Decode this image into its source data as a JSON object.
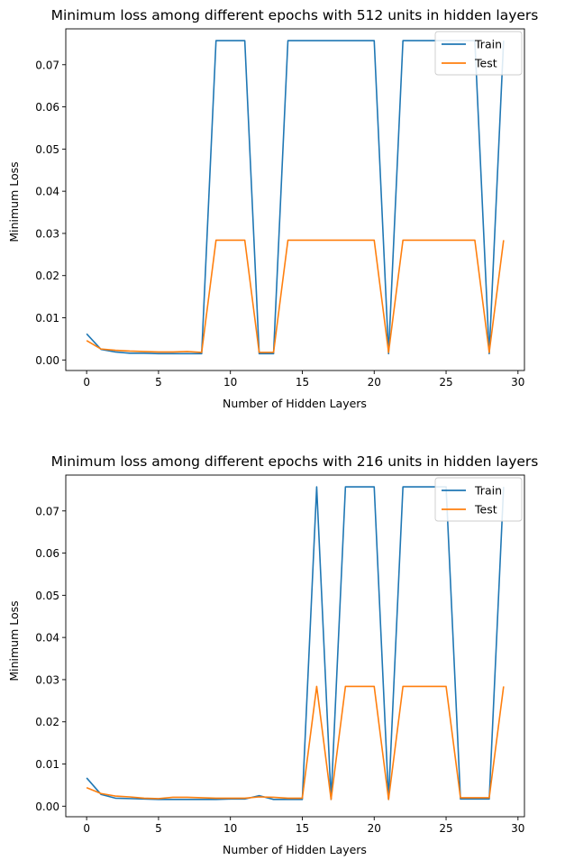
{
  "chart_data": [
    {
      "type": "line",
      "title": "Minimum loss among different epochs with 512 units in hidden layers",
      "xlabel": "Number of Hidden Layers",
      "ylabel": "Minimum Loss",
      "xlim": [
        -1.45,
        30.45
      ],
      "ylim": [
        -0.0025,
        0.0785
      ],
      "xticks": [
        0,
        5,
        10,
        15,
        20,
        25,
        30
      ],
      "xtick_labels": [
        "0",
        "5",
        "10",
        "15",
        "20",
        "25",
        "30"
      ],
      "yticks": [
        0.0,
        0.01,
        0.02,
        0.03,
        0.04,
        0.05,
        0.06,
        0.07
      ],
      "ytick_labels": [
        "0.00",
        "0.01",
        "0.02",
        "0.03",
        "0.04",
        "0.05",
        "0.06",
        "0.07"
      ],
      "grid": false,
      "legend": "top-right",
      "x": [
        0,
        1,
        2,
        3,
        4,
        5,
        6,
        7,
        8,
        9,
        10,
        11,
        12,
        13,
        14,
        15,
        16,
        17,
        18,
        19,
        20,
        21,
        22,
        23,
        24,
        25,
        26,
        27,
        28,
        29
      ],
      "series": [
        {
          "name": "Train",
          "color": "#1f77b4",
          "values": [
            0.0062,
            0.0025,
            0.0019,
            0.0016,
            0.0016,
            0.0015,
            0.0015,
            0.0015,
            0.0015,
            0.0757,
            0.0757,
            0.0757,
            0.0015,
            0.0015,
            0.0757,
            0.0757,
            0.0757,
            0.0757,
            0.0757,
            0.0757,
            0.0757,
            0.0015,
            0.0757,
            0.0757,
            0.0757,
            0.0757,
            0.0757,
            0.0757,
            0.0015,
            0.0757
          ]
        },
        {
          "name": "Test",
          "color": "#ff7f0e",
          "values": [
            0.0046,
            0.0026,
            0.0023,
            0.0021,
            0.002,
            0.0019,
            0.0019,
            0.002,
            0.0018,
            0.0284,
            0.0284,
            0.0284,
            0.0018,
            0.0018,
            0.0284,
            0.0284,
            0.0284,
            0.0284,
            0.0284,
            0.0284,
            0.0284,
            0.0018,
            0.0284,
            0.0284,
            0.0284,
            0.0284,
            0.0284,
            0.0284,
            0.0018,
            0.0284
          ]
        }
      ]
    },
    {
      "type": "line",
      "title": "Minimum loss among different epochs with 216 units in hidden layers",
      "xlabel": "Number of Hidden Layers",
      "ylabel": "Minimum Loss",
      "xlim": [
        -1.45,
        30.45
      ],
      "ylim": [
        -0.0025,
        0.0785
      ],
      "xticks": [
        0,
        5,
        10,
        15,
        20,
        25,
        30
      ],
      "xtick_labels": [
        "0",
        "5",
        "10",
        "15",
        "20",
        "25",
        "30"
      ],
      "yticks": [
        0.0,
        0.01,
        0.02,
        0.03,
        0.04,
        0.05,
        0.06,
        0.07
      ],
      "ytick_labels": [
        "0.00",
        "0.01",
        "0.02",
        "0.03",
        "0.04",
        "0.05",
        "0.06",
        "0.07"
      ],
      "grid": false,
      "legend": "top-right",
      "x": [
        0,
        1,
        2,
        3,
        4,
        5,
        6,
        7,
        8,
        9,
        10,
        11,
        12,
        13,
        14,
        15,
        16,
        17,
        18,
        19,
        20,
        21,
        22,
        23,
        24,
        25,
        26,
        27,
        28,
        29
      ],
      "series": [
        {
          "name": "Train",
          "color": "#1f77b4",
          "values": [
            0.0067,
            0.0028,
            0.0019,
            0.0018,
            0.0017,
            0.0016,
            0.0016,
            0.0016,
            0.0016,
            0.0016,
            0.0017,
            0.0017,
            0.0025,
            0.0016,
            0.0016,
            0.0016,
            0.0757,
            0.0016,
            0.0757,
            0.0757,
            0.0757,
            0.0016,
            0.0757,
            0.0757,
            0.0757,
            0.0757,
            0.0017,
            0.0017,
            0.0017,
            0.0757
          ]
        },
        {
          "name": "Test",
          "color": "#ff7f0e",
          "values": [
            0.0044,
            0.003,
            0.0024,
            0.0022,
            0.0019,
            0.0018,
            0.0021,
            0.0021,
            0.002,
            0.0019,
            0.0019,
            0.0019,
            0.0022,
            0.0021,
            0.0019,
            0.0019,
            0.0284,
            0.0016,
            0.0284,
            0.0284,
            0.0284,
            0.0016,
            0.0284,
            0.0284,
            0.0284,
            0.0284,
            0.002,
            0.002,
            0.002,
            0.0284
          ]
        }
      ]
    }
  ]
}
